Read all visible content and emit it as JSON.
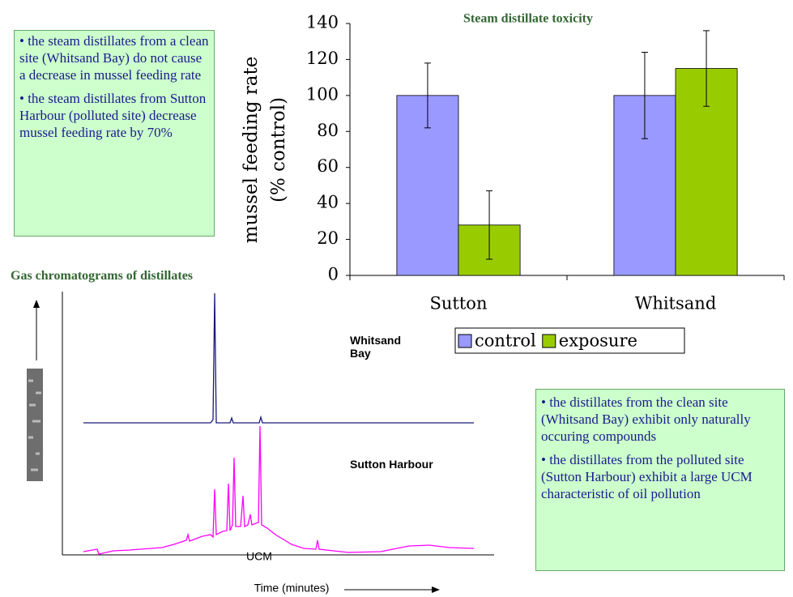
{
  "chart_data": {
    "type": "bar",
    "title": "Steam distillate toxicity",
    "y_label": [
      "mussel feeding rate",
      "(% control)"
    ],
    "categories": [
      "Sutton",
      "Whitsand"
    ],
    "series": [
      {
        "name": "control",
        "color": "#9999ff",
        "values": [
          100,
          100
        ],
        "errors": [
          18,
          24
        ]
      },
      {
        "name": "exposure",
        "color": "#99cc00",
        "values": [
          28,
          115
        ],
        "errors": [
          19,
          21
        ]
      }
    ],
    "ylim": [
      0,
      140
    ],
    "yticks": [
      0,
      20,
      40,
      60,
      80,
      100,
      120,
      140
    ],
    "grid": false,
    "legend": "bottom"
  },
  "text_boxes": [
    {
      "paragraphs": [
        "• the steam distillates from a clean site (Whitsand Bay) do not cause a decrease in mussel feeding rate",
        "• the steam distillates from Sutton Harbour (polluted site) decrease mussel feeding rate by 70%"
      ]
    },
    {
      "paragraphs": [
        "• the distillates from the clean site (Whitsand Bay) exhibit only naturally occuring compounds",
        "• the distillates from the polluted site (Sutton Harbour) exhibit a large UCM characteristic of oil pollution"
      ]
    }
  ],
  "chromatogram": {
    "title": "Gas chromatograms of distillates",
    "trace_labels": [
      "Whitsand Bay",
      "Sutton Harbour"
    ],
    "annotation": "UCM",
    "x_label": "Time (minutes)"
  }
}
